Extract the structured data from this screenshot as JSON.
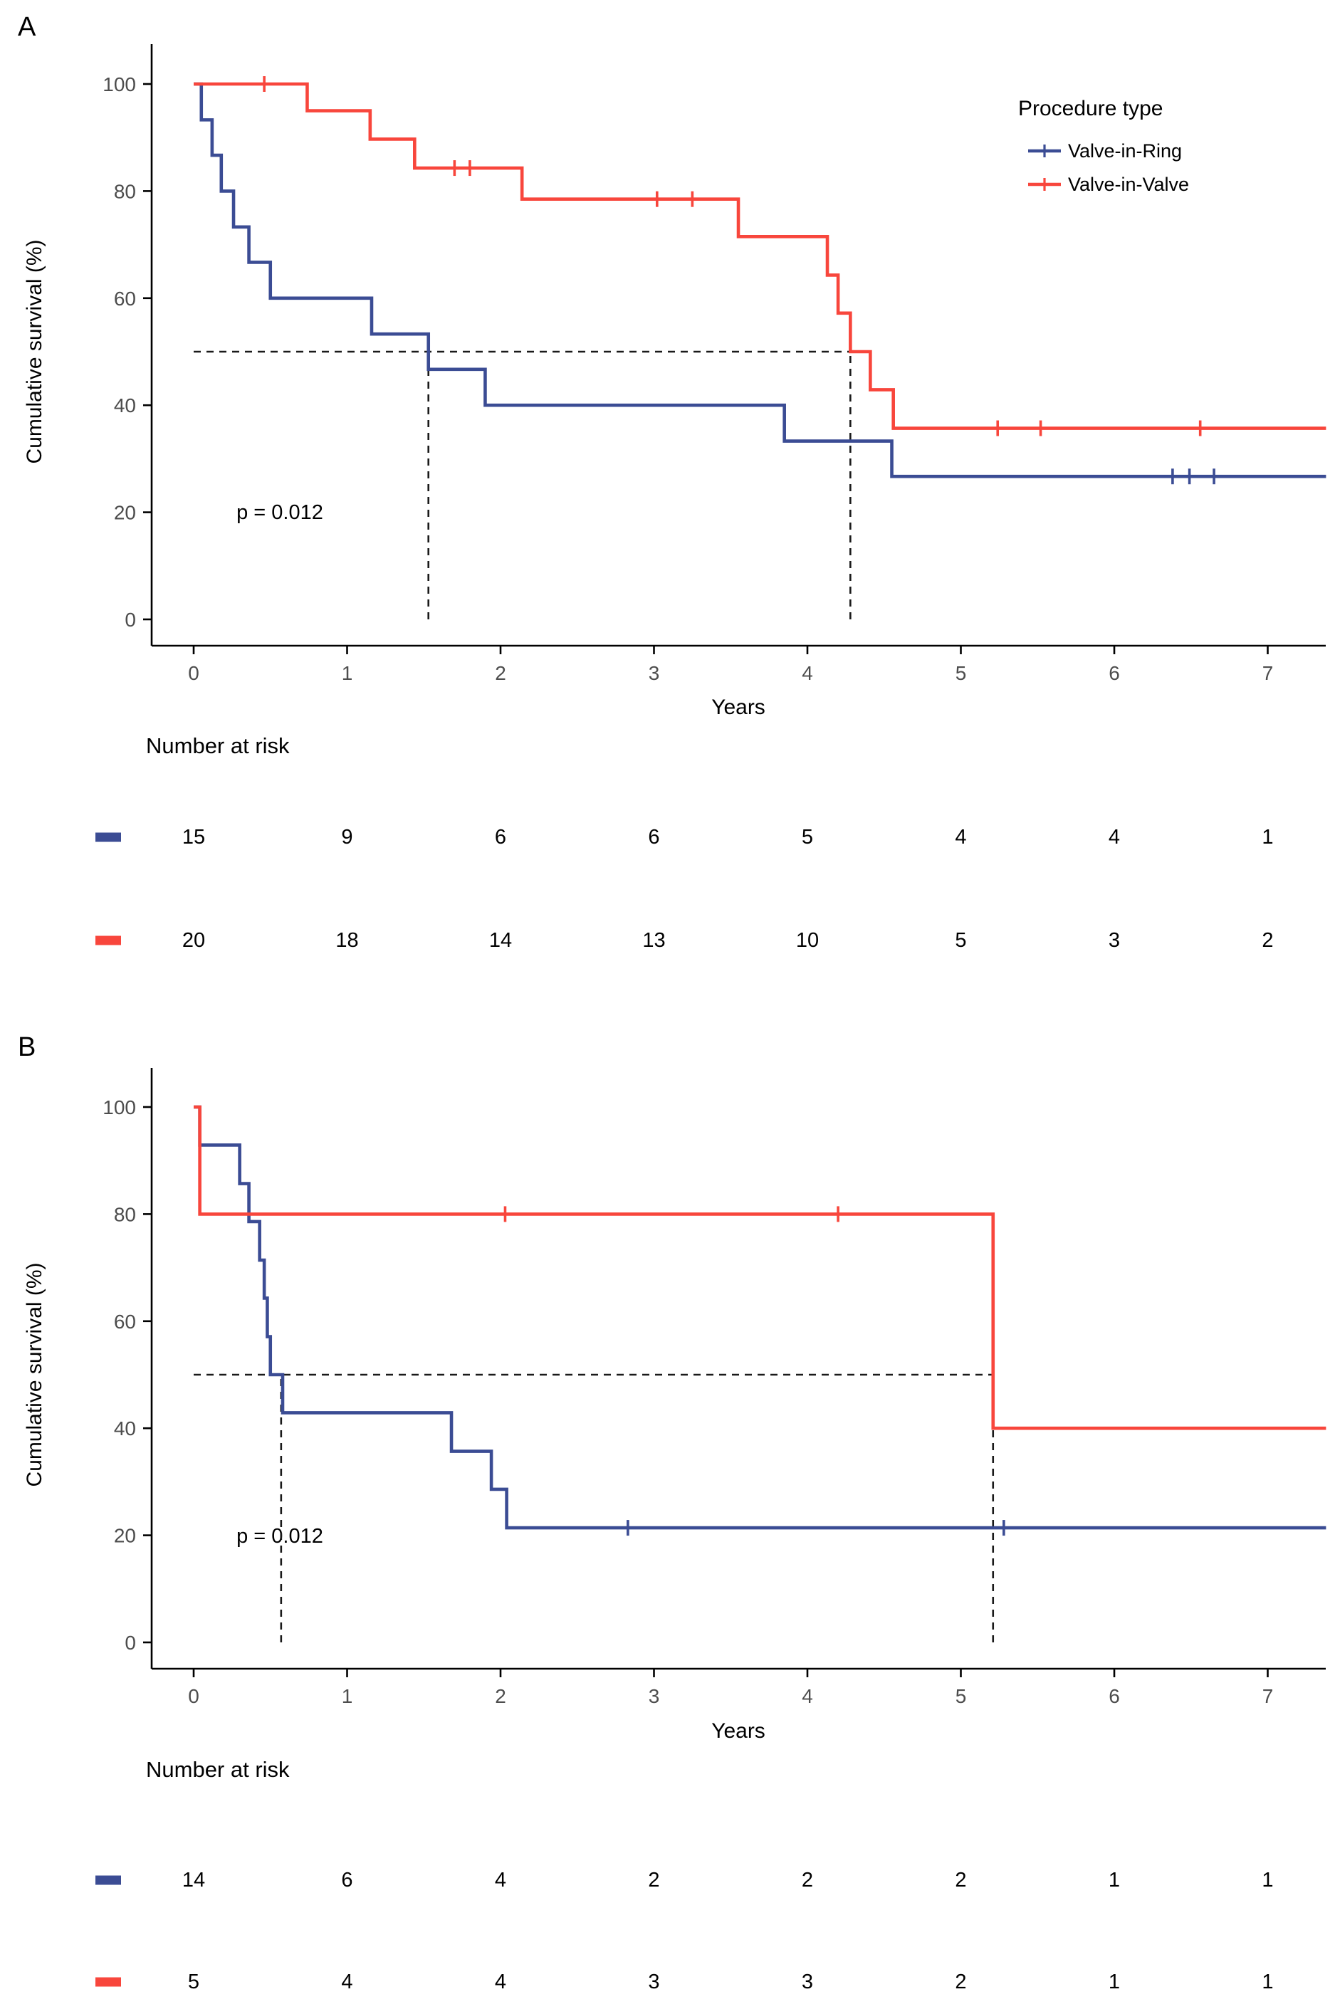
{
  "figure": {
    "background": "#ffffff",
    "legend": {
      "title": "Procedure type",
      "items": [
        {
          "label": "Valve-in-Ring",
          "color": "#3B4C94"
        },
        {
          "label": "Valve-in-Valve",
          "color": "#F8463C"
        }
      ]
    },
    "colors": {
      "blue": "#3B4C94",
      "red": "#F8463C",
      "axis": "#000000",
      "tick_text": "#4d4d4d",
      "dashed": "#1a1a1a"
    }
  },
  "chart_data": [
    {
      "panel": "A",
      "type": "line",
      "subtype": "kaplan-meier-step",
      "xlabel": "Years",
      "ylabel": "Cumulative survival (%)",
      "xlim": [
        0,
        7.4
      ],
      "ylim": [
        0,
        100
      ],
      "xticks": [
        0,
        1,
        2,
        3,
        4,
        5,
        6,
        7
      ],
      "yticks": [
        0,
        20,
        40,
        60,
        80,
        100
      ],
      "grid": false,
      "legend_position": "top-right-inside",
      "pvalue": "p = 0.012",
      "pvalue_pos": {
        "x": 0.56,
        "y": 20
      },
      "median_dashed": {
        "y": 50,
        "h_x_start": 0,
        "h_x_end": 4.28,
        "verticals": [
          1.53,
          4.28
        ]
      },
      "series": [
        {
          "name": "Valve-in-Ring",
          "color": "#3B4C94",
          "start": [
            0,
            100
          ],
          "end_x": 7.38,
          "steps": [
            [
              0.05,
              93.3
            ],
            [
              0.12,
              86.7
            ],
            [
              0.18,
              80
            ],
            [
              0.26,
              73.3
            ],
            [
              0.36,
              66.7
            ],
            [
              0.5,
              60
            ],
            [
              1.16,
              53.3
            ],
            [
              1.53,
              46.7
            ],
            [
              1.9,
              40
            ],
            [
              3.85,
              33.3
            ],
            [
              4.55,
              26.7
            ]
          ],
          "censors": [
            [
              6.38,
              26.7
            ],
            [
              6.49,
              26.7
            ],
            [
              6.65,
              26.7
            ]
          ]
        },
        {
          "name": "Valve-in-Valve",
          "color": "#F8463C",
          "start": [
            0,
            100
          ],
          "end_x": 7.38,
          "steps": [
            [
              0.74,
              95
            ],
            [
              1.15,
              89.7
            ],
            [
              1.44,
              84.3
            ],
            [
              2.14,
              78.5
            ],
            [
              3.55,
              71.5
            ],
            [
              4.13,
              64.3
            ],
            [
              4.2,
              57.2
            ],
            [
              4.28,
              50
            ],
            [
              4.41,
              42.9
            ],
            [
              4.56,
              35.7
            ]
          ],
          "censors": [
            [
              0.46,
              100
            ],
            [
              1.7,
              84.3
            ],
            [
              1.8,
              84.3
            ],
            [
              3.02,
              78.5
            ],
            [
              3.25,
              78.5
            ],
            [
              5.24,
              35.7
            ],
            [
              5.52,
              35.7
            ],
            [
              6.56,
              35.7
            ]
          ]
        }
      ],
      "risk_table": {
        "title": "Number at risk",
        "times": [
          0,
          1,
          2,
          3,
          4,
          5,
          6,
          7
        ],
        "rows": [
          {
            "name": "Valve-in-Ring",
            "color": "#3B4C94",
            "counts": [
              15,
              9,
              6,
              6,
              5,
              4,
              4,
              1
            ]
          },
          {
            "name": "Valve-in-Valve",
            "color": "#F8463C",
            "counts": [
              20,
              18,
              14,
              13,
              10,
              5,
              3,
              2
            ]
          }
        ]
      }
    },
    {
      "panel": "B",
      "type": "line",
      "subtype": "kaplan-meier-step",
      "xlabel": "Years",
      "ylabel": "Cumulative survival (%)",
      "xlim": [
        0,
        7.4
      ],
      "ylim": [
        0,
        100
      ],
      "xticks": [
        0,
        1,
        2,
        3,
        4,
        5,
        6,
        7
      ],
      "yticks": [
        0,
        20,
        40,
        60,
        80,
        100
      ],
      "grid": false,
      "pvalue": "p = 0.012",
      "pvalue_pos": {
        "x": 0.56,
        "y": 20
      },
      "median_dashed": {
        "y": 50,
        "h_x_start": 0,
        "h_x_end": 5.21,
        "verticals": [
          0.57,
          5.21
        ]
      },
      "series": [
        {
          "name": "Valve-in-Ring",
          "color": "#3B4C94",
          "start": [
            0,
            100
          ],
          "end_x": 7.38,
          "steps": [
            [
              0.04,
              92.9
            ],
            [
              0.3,
              85.7
            ],
            [
              0.36,
              78.6
            ],
            [
              0.43,
              71.4
            ],
            [
              0.46,
              64.3
            ],
            [
              0.48,
              57.1
            ],
            [
              0.5,
              50
            ],
            [
              0.58,
              42.9
            ],
            [
              1.68,
              35.7
            ],
            [
              1.94,
              28.6
            ],
            [
              2.04,
              21.4
            ]
          ],
          "censors": [
            [
              2.83,
              21.4
            ],
            [
              5.28,
              21.4
            ]
          ]
        },
        {
          "name": "Valve-in-Valve",
          "color": "#F8463C",
          "start": [
            0,
            100
          ],
          "end_x": 7.38,
          "steps": [
            [
              0.04,
              80
            ],
            [
              5.21,
              40
            ]
          ],
          "censors": [
            [
              2.03,
              80
            ],
            [
              4.2,
              80
            ]
          ]
        }
      ],
      "risk_table": {
        "title": "Number at risk",
        "times": [
          0,
          1,
          2,
          3,
          4,
          5,
          6,
          7
        ],
        "rows": [
          {
            "name": "Valve-in-Ring",
            "color": "#3B4C94",
            "counts": [
              14,
              6,
              4,
              2,
              2,
              2,
              1,
              1
            ]
          },
          {
            "name": "Valve-in-Valve",
            "color": "#F8463C",
            "counts": [
              5,
              4,
              4,
              3,
              3,
              2,
              1,
              1
            ]
          }
        ]
      }
    }
  ]
}
